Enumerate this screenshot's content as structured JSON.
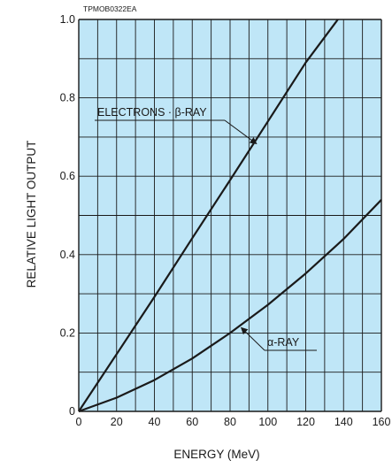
{
  "figure_code": "TPMOB0322EA",
  "chart_data": {
    "type": "line",
    "xlabel": "ENERGY (MeV)",
    "ylabel": "RELATIVE LIGHT OUTPUT",
    "xlim": [
      0,
      160
    ],
    "ylim": [
      0,
      1.0
    ],
    "x_ticks": [
      "0",
      "20",
      "40",
      "60",
      "80",
      "100",
      "120",
      "140",
      "160"
    ],
    "y_ticks": [
      "0",
      "0.2",
      "0.4",
      "0.6",
      "0.8",
      "1.0"
    ],
    "grid": true,
    "plot_background": "#bfe6f7",
    "grid_color": "#1a1a1a",
    "line_color": "#1a1a1a",
    "series": [
      {
        "name": "ELECTRONS · β-RAY",
        "x": [
          0,
          20,
          40,
          60,
          80,
          100,
          120,
          137
        ],
        "y": [
          0,
          0.146,
          0.292,
          0.442,
          0.59,
          0.74,
          0.89,
          1.0
        ]
      },
      {
        "name": "α-RAY",
        "x": [
          0,
          20,
          40,
          60,
          80,
          100,
          120,
          140,
          160
        ],
        "y": [
          0,
          0.035,
          0.08,
          0.135,
          0.2,
          0.272,
          0.352,
          0.44,
          0.54
        ]
      }
    ],
    "annotations": [
      {
        "text": "ELECTRONS · β-RAY",
        "series": 0,
        "arrow_to_x": 93
      },
      {
        "text": "α-RAY",
        "series": 1,
        "arrow_to_x": 85
      }
    ]
  }
}
